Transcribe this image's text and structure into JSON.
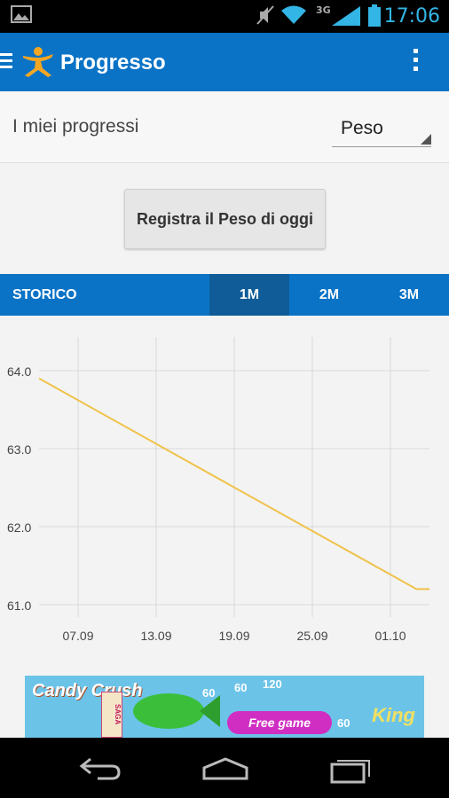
{
  "status_bar": {
    "time": "17:06",
    "network": "3G",
    "icons": [
      "image-icon",
      "mute-icon",
      "wifi-icon",
      "signal-icon",
      "battery-icon"
    ]
  },
  "app_bar": {
    "title": "Progresso",
    "icons": [
      "menu-icon",
      "app-logo-icon",
      "overflow-menu-icon"
    ]
  },
  "progress_header": {
    "label": "I miei progressi",
    "selected_metric": "Peso"
  },
  "register_button": {
    "label": "Registra il Peso di oggi"
  },
  "history_tabs": {
    "title": "STORICO",
    "tabs": [
      {
        "label": "1M",
        "active": true
      },
      {
        "label": "2M",
        "active": false
      },
      {
        "label": "3M",
        "active": false
      }
    ]
  },
  "chart_data": {
    "type": "line",
    "x_tick_labels": [
      "07.09",
      "13.09",
      "19.09",
      "25.09",
      "01.10"
    ],
    "y_tick_labels": [
      "64.0",
      "63.0",
      "62.0",
      "61.0"
    ],
    "ylim": [
      61.0,
      64.0
    ],
    "grid": true,
    "series": [
      {
        "color": "#f0c24a",
        "points": [
          {
            "x": "04.09",
            "y": 63.9
          },
          {
            "x": "03.10",
            "y": 61.2
          },
          {
            "x": "05.10",
            "y": 61.2
          }
        ]
      }
    ]
  },
  "ad_banner": {
    "brand": "Candy Crush",
    "saga": "SAGA",
    "cta": "Free game",
    "publisher": "King",
    "numbers": [
      "60",
      "60",
      "120",
      "60"
    ]
  },
  "nav_bar": {
    "icons": [
      "back-icon",
      "home-icon",
      "recent-apps-icon"
    ]
  },
  "colors": {
    "primary": "#0a73c6",
    "active_tab": "#0f5c98",
    "chart_line": "#f0c24a",
    "status_time": "#33b5e5"
  }
}
